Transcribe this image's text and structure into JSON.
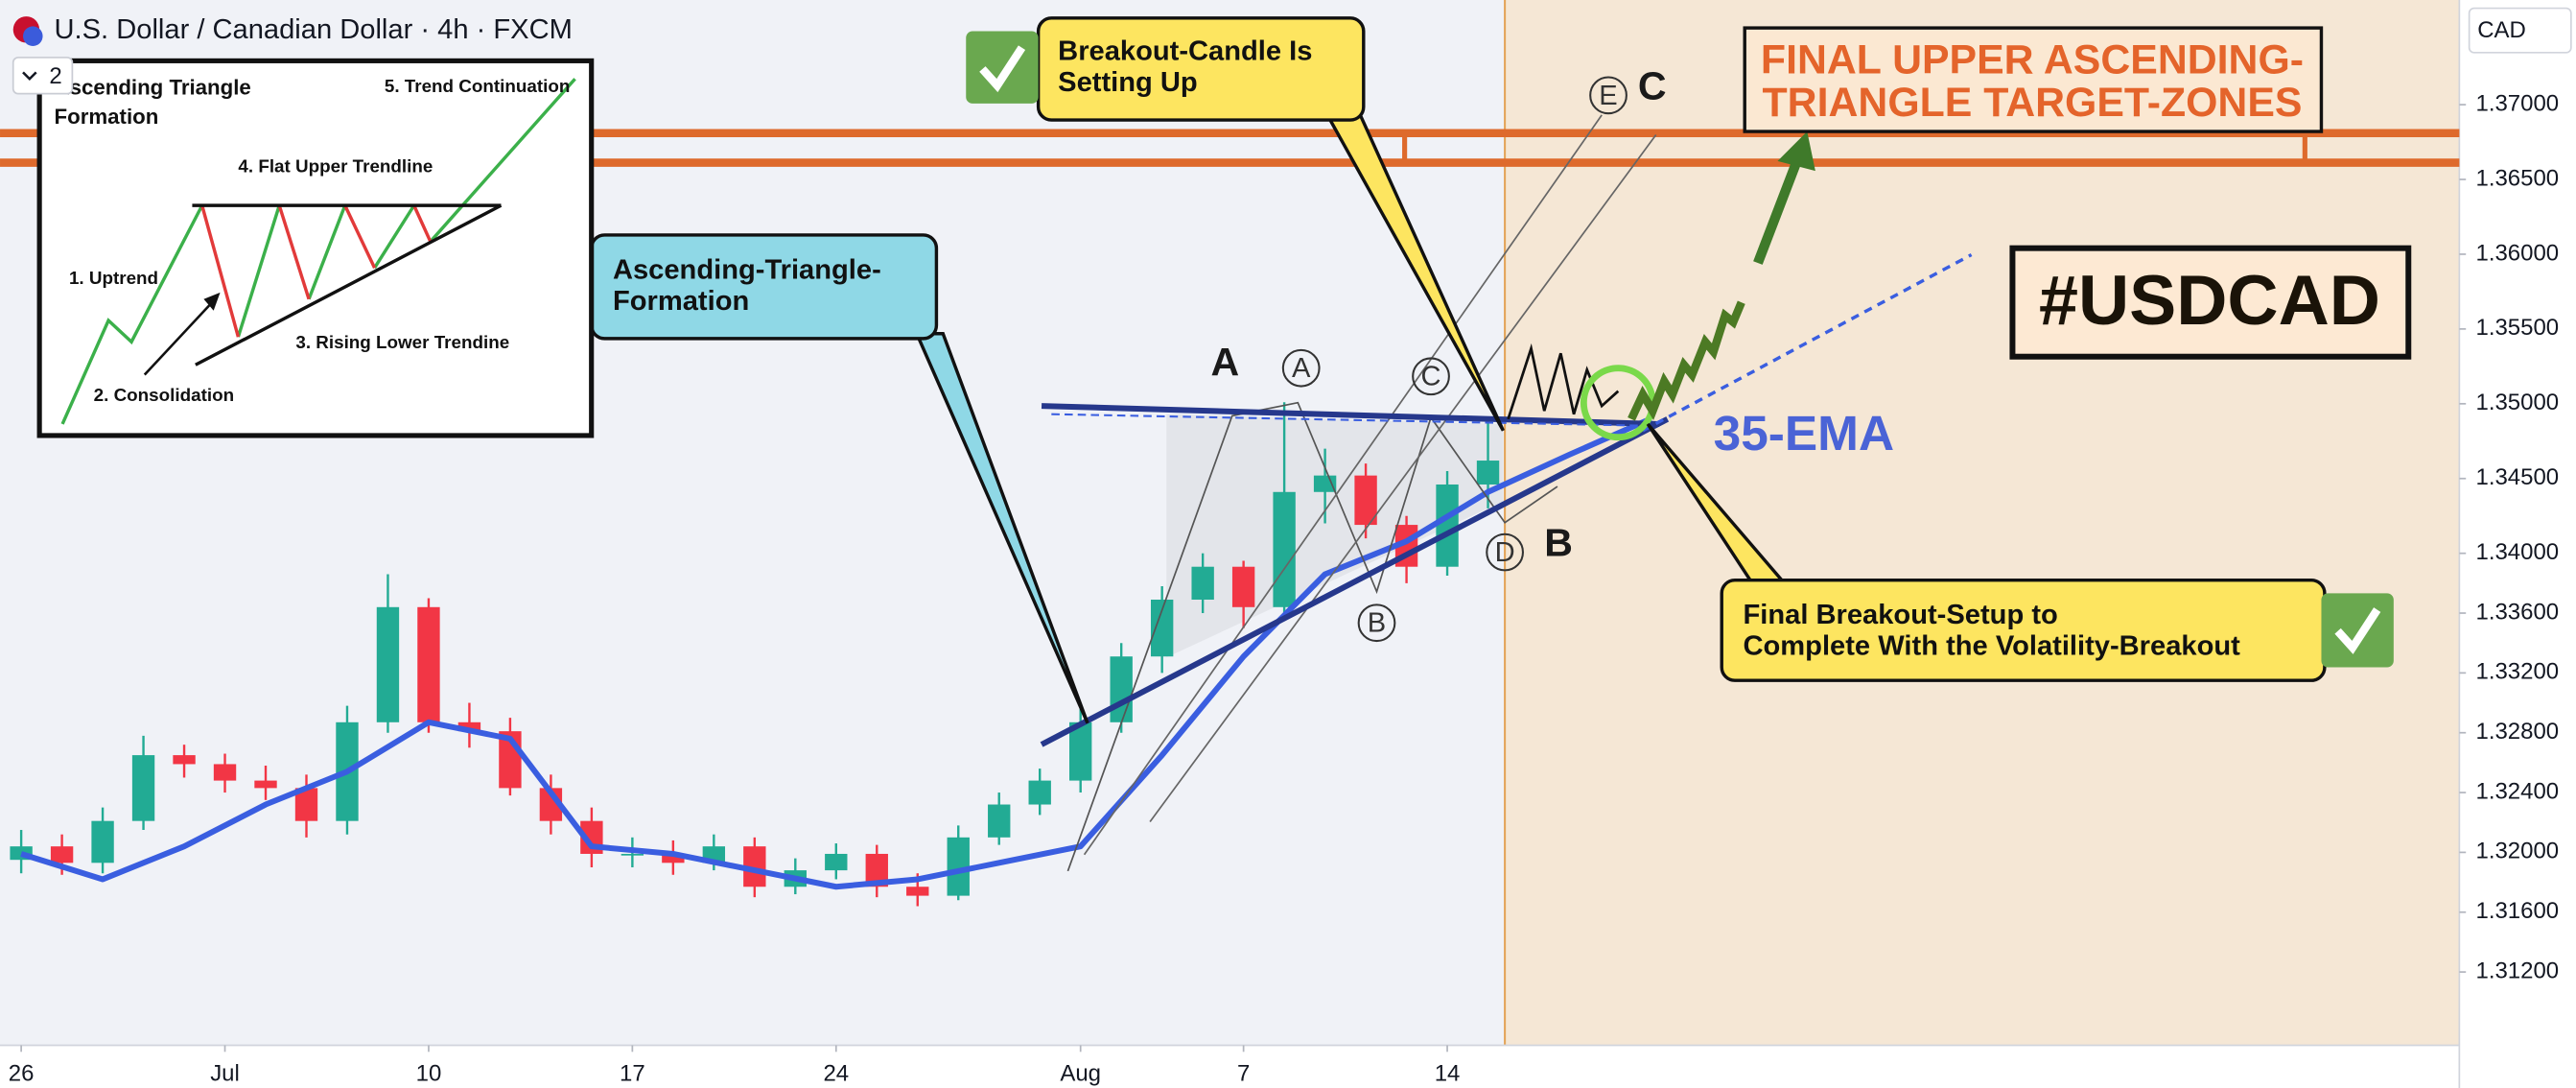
{
  "header": {
    "symbol_title": "U.S. Dollar / Canadian Dollar · 4h · FXCM",
    "layout_count": "2",
    "currency": "CAD"
  },
  "inset": {
    "title": [
      "Ascending Triangle",
      "Formation"
    ],
    "labels": [
      "1. Uptrend",
      "2. Consolidation",
      "3. Rising Lower Trendine",
      "4. Flat Upper Trendline",
      "5. Trend Continuation"
    ]
  },
  "annotations": {
    "breakout_callout": [
      "Breakout-Candle Is",
      "Setting Up"
    ],
    "triangle_callout": [
      "Ascending-Triangle-",
      "Formation"
    ],
    "target_callout": [
      "FINAL UPPER ASCENDING-",
      "TRIANGLE TARGET-ZONES"
    ],
    "ticker_tag": "#USDCAD",
    "final_callout": [
      "Final Breakout-Setup to",
      "Complete With the Volatility-Breakout"
    ],
    "points": [
      "A",
      "B",
      "C"
    ],
    "circled_points": [
      "A",
      "B",
      "C",
      "D",
      "E"
    ]
  },
  "chart_data": {
    "type": "candlestick",
    "x": [
      0,
      1,
      2,
      3,
      4,
      5,
      6,
      7,
      8,
      9,
      10,
      11,
      12,
      13,
      14,
      15,
      16,
      17,
      18,
      19,
      20,
      21,
      22,
      23,
      24,
      25,
      26,
      27,
      28,
      29,
      30,
      31,
      32,
      33,
      34,
      35,
      36
    ],
    "open": [
      1.3195,
      1.3204,
      1.3193,
      1.3221,
      1.3265,
      1.3259,
      1.3248,
      1.3243,
      1.3221,
      1.3287,
      1.3364,
      1.3287,
      1.3281,
      1.3243,
      1.3221,
      1.3199,
      1.3199,
      1.3193,
      1.3204,
      1.3177,
      1.3188,
      1.3199,
      1.3177,
      1.3171,
      1.321,
      1.3232,
      1.3248,
      1.3287,
      1.3331,
      1.3369,
      1.3391,
      1.3364,
      1.3441,
      1.3452,
      1.3419,
      1.3391,
      1.3446
    ],
    "high": [
      1.3215,
      1.3212,
      1.323,
      1.3278,
      1.3272,
      1.3266,
      1.3258,
      1.3252,
      1.3298,
      1.3386,
      1.337,
      1.33,
      1.329,
      1.3252,
      1.323,
      1.321,
      1.3208,
      1.3212,
      1.321,
      1.3196,
      1.3206,
      1.3205,
      1.3186,
      1.3218,
      1.324,
      1.3256,
      1.3296,
      1.334,
      1.3378,
      1.34,
      1.3395,
      1.3501,
      1.347,
      1.346,
      1.3425,
      1.3455,
      1.349
    ],
    "low": [
      1.3186,
      1.3185,
      1.3186,
      1.3215,
      1.325,
      1.324,
      1.3235,
      1.321,
      1.3212,
      1.328,
      1.328,
      1.327,
      1.3238,
      1.3212,
      1.319,
      1.319,
      1.3185,
      1.3188,
      1.317,
      1.3172,
      1.3182,
      1.317,
      1.3164,
      1.3168,
      1.3205,
      1.3225,
      1.324,
      1.328,
      1.332,
      1.336,
      1.335,
      1.336,
      1.342,
      1.341,
      1.338,
      1.3385,
      1.343
    ],
    "close": [
      1.3204,
      1.3193,
      1.3221,
      1.3265,
      1.3259,
      1.3248,
      1.3243,
      1.3221,
      1.3287,
      1.3364,
      1.3287,
      1.3281,
      1.3243,
      1.3221,
      1.3199,
      1.3199,
      1.3193,
      1.3204,
      1.3177,
      1.3188,
      1.3199,
      1.3177,
      1.3171,
      1.321,
      1.3232,
      1.3248,
      1.3287,
      1.3331,
      1.3369,
      1.3391,
      1.3364,
      1.3441,
      1.3452,
      1.3419,
      1.3391,
      1.3446,
      1.3462
    ],
    "up_color": "#22ab94",
    "down_color": "#f23645",
    "ema": {
      "name": "35-EMA",
      "color": "#3a5ee0",
      "x": [
        0,
        2,
        4,
        6,
        8,
        10,
        12,
        14,
        16,
        18,
        20,
        22,
        24,
        26,
        28,
        30,
        32,
        34,
        36,
        38,
        40
      ],
      "values": [
        1.3199,
        1.3182,
        1.3204,
        1.3232,
        1.3254,
        1.3287,
        1.3276,
        1.3204,
        1.3199,
        1.3188,
        1.3177,
        1.3182,
        1.3193,
        1.3204,
        1.3265,
        1.3331,
        1.3386,
        1.3408,
        1.3441,
        1.3466,
        1.349
      ]
    },
    "xlim": [
      -0.52,
      59.84
    ],
    "ylim": [
      1.3071,
      1.377
    ],
    "xticks": [
      {
        "value": 0,
        "label": "26"
      },
      {
        "value": 5,
        "label": "Jul"
      },
      {
        "value": 10,
        "label": "10"
      },
      {
        "value": 15,
        "label": "17"
      },
      {
        "value": 20,
        "label": "24"
      },
      {
        "value": 26,
        "label": "Aug"
      },
      {
        "value": 30,
        "label": "7"
      },
      {
        "value": 35,
        "label": "14"
      }
    ],
    "yticks": [
      {
        "value": 1.37,
        "label": "1.37000"
      },
      {
        "value": 1.365,
        "label": "1.36500"
      },
      {
        "value": 1.36,
        "label": "1.36000"
      },
      {
        "value": 1.355,
        "label": "1.35500"
      },
      {
        "value": 1.35,
        "label": "1.35000"
      },
      {
        "value": 1.345,
        "label": "1.34500"
      },
      {
        "value": 1.34,
        "label": "1.34000"
      },
      {
        "value": 1.336,
        "label": "1.33600"
      },
      {
        "value": 1.332,
        "label": "1.33200"
      },
      {
        "value": 1.328,
        "label": "1.32800"
      },
      {
        "value": 1.324,
        "label": "1.32400"
      },
      {
        "value": 1.32,
        "label": "1.32000"
      },
      {
        "value": 1.316,
        "label": "1.31600"
      },
      {
        "value": 1.312,
        "label": "1.31200"
      }
    ]
  }
}
